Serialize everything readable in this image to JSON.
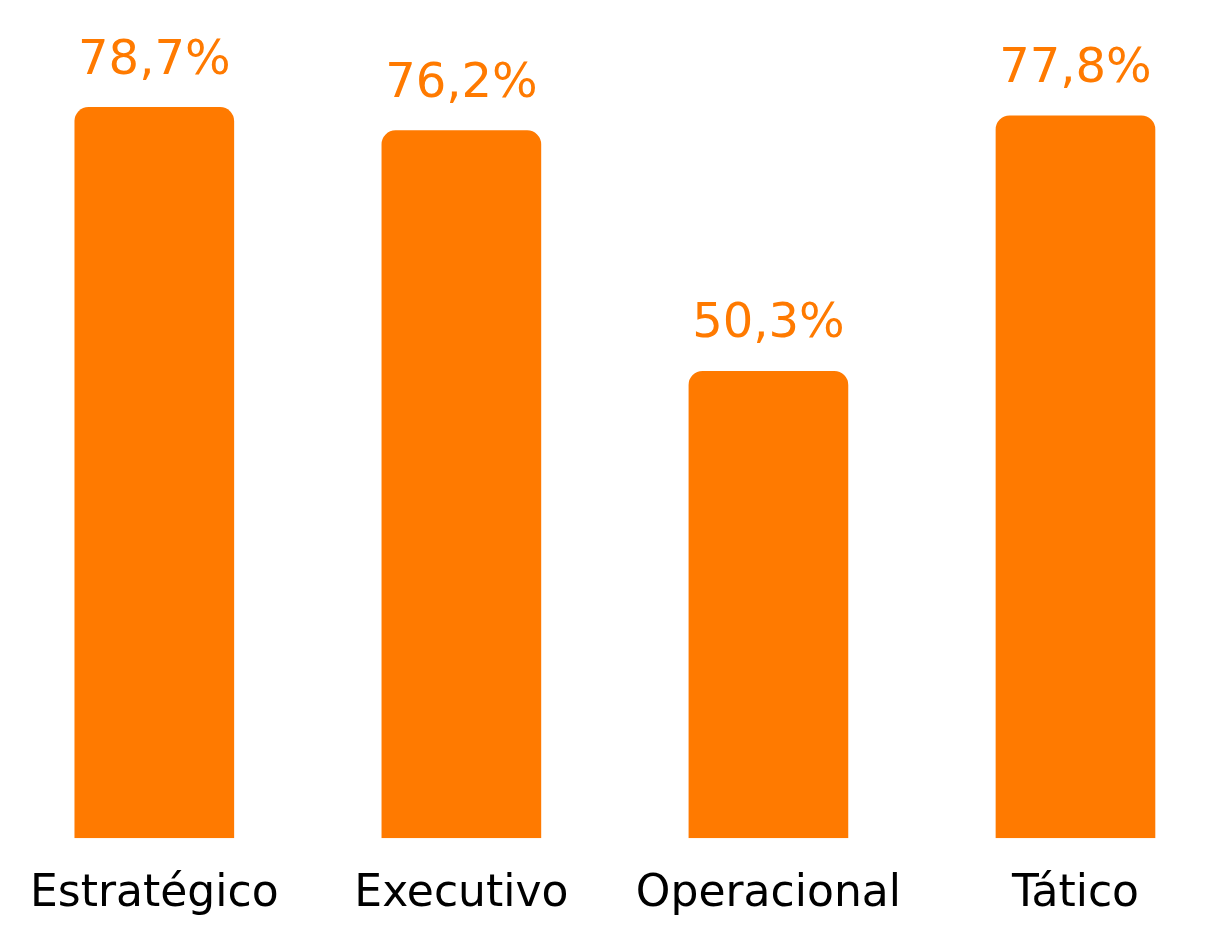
{
  "chart_data": {
    "type": "bar",
    "categories": [
      "Estratégico",
      "Executivo",
      "Operacional",
      "Tático"
    ],
    "values": [
      78.7,
      76.2,
      50.3,
      77.8
    ],
    "color": "#ff7a00",
    "value_labels": [
      "78,7%",
      "76,2%",
      "50,3%",
      "77,8%"
    ],
    "grid": false,
    "legend": false
  }
}
